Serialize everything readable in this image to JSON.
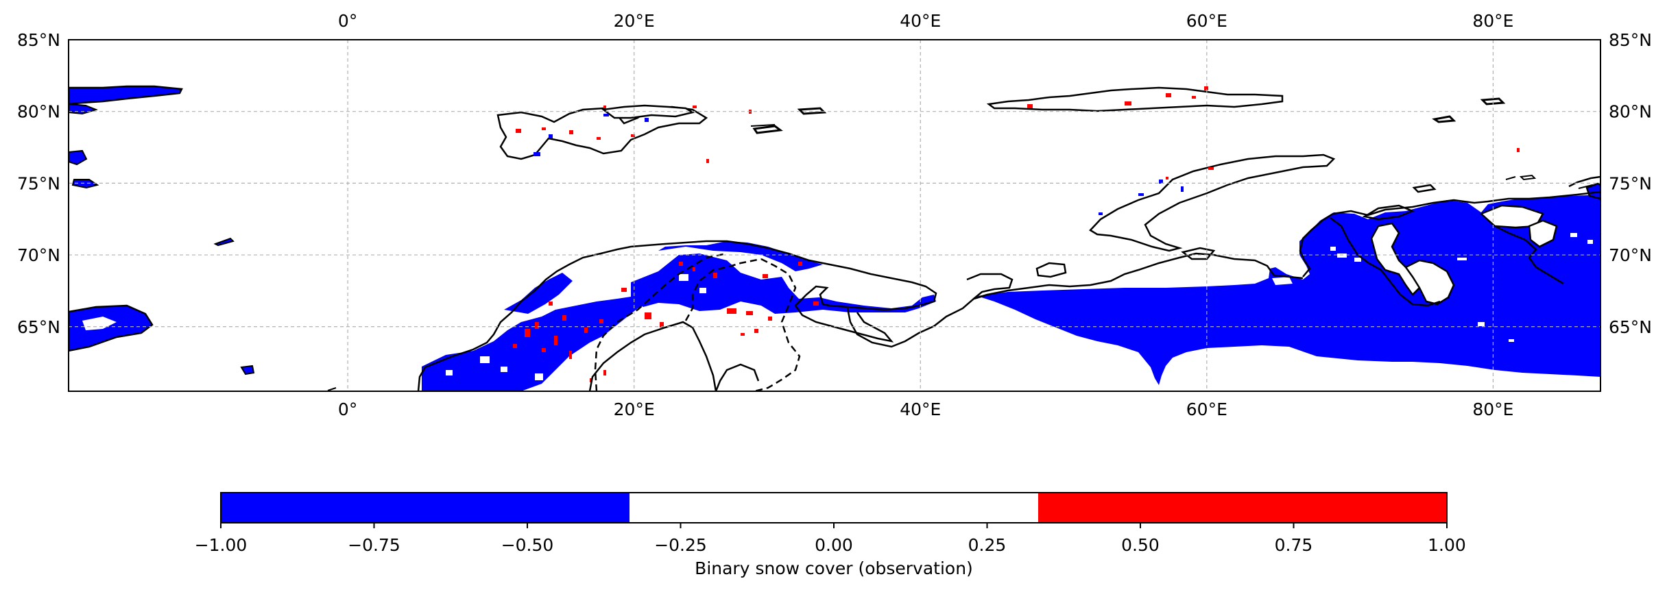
{
  "map": {
    "lon_range": [
      -19.5,
      87.5
    ],
    "lat_range": [
      60.5,
      85.0
    ],
    "lon_ticks": [
      {
        "value": 0,
        "label": "0°"
      },
      {
        "value": 20,
        "label": "20°E"
      },
      {
        "value": 40,
        "label": "40°E"
      },
      {
        "value": 60,
        "label": "60°E"
      },
      {
        "value": 80,
        "label": "80°E"
      }
    ],
    "lat_ticks": [
      {
        "value": 65,
        "label": "65°N"
      },
      {
        "value": 70,
        "label": "70°N"
      },
      {
        "value": 75,
        "label": "75°N"
      },
      {
        "value": 80,
        "label": "80°N"
      },
      {
        "value": 85,
        "label": "85°N"
      }
    ],
    "gridlines": true,
    "colors": {
      "snow_negative": "#0000ff",
      "neutral": "#ffffff",
      "snow_positive": "#ff0000",
      "coastline": "#000000",
      "grid": "#b0b0b0"
    }
  },
  "colorbar": {
    "label": "Binary snow cover (observation)",
    "range": [
      -1.0,
      1.0
    ],
    "segments": [
      {
        "from": -1.0,
        "to": -0.3333,
        "color": "#0000ff"
      },
      {
        "from": -0.3333,
        "to": 0.3333,
        "color": "#ffffff"
      },
      {
        "from": 0.3333,
        "to": 1.0,
        "color": "#ff0000"
      }
    ],
    "ticks": [
      {
        "value": -1.0,
        "label": "−1.00"
      },
      {
        "value": -0.75,
        "label": "−0.75"
      },
      {
        "value": -0.5,
        "label": "−0.50"
      },
      {
        "value": -0.25,
        "label": "−0.25"
      },
      {
        "value": 0.0,
        "label": "0.00"
      },
      {
        "value": 0.25,
        "label": "0.25"
      },
      {
        "value": 0.5,
        "label": "0.50"
      },
      {
        "value": 0.75,
        "label": "0.75"
      },
      {
        "value": 1.0,
        "label": "1.00"
      }
    ]
  }
}
